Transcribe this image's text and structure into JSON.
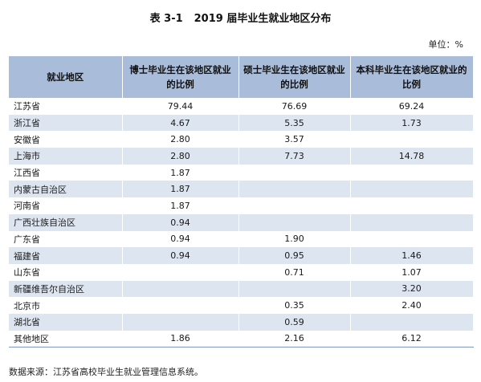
{
  "title": {
    "number": "表 3-1",
    "text": "2019 届毕业生就业地区分布"
  },
  "unit": "单位：%",
  "table": {
    "headers": [
      "就业地区",
      "博士毕业生在该地区就业的比例",
      "硕士毕业生在该地区就业的比例",
      "本科毕业生在该地区就业的比例"
    ],
    "rows": [
      [
        "江苏省",
        "79.44",
        "76.69",
        "69.24"
      ],
      [
        "浙江省",
        "4.67",
        "5.35",
        "1.73"
      ],
      [
        "安徽省",
        "2.80",
        "3.57",
        ""
      ],
      [
        "上海市",
        "2.80",
        "7.73",
        "14.78"
      ],
      [
        "江西省",
        "1.87",
        "",
        ""
      ],
      [
        "内蒙古自治区",
        "1.87",
        "",
        ""
      ],
      [
        "河南省",
        "1.87",
        "",
        ""
      ],
      [
        "广西壮族自治区",
        "0.94",
        "",
        ""
      ],
      [
        "广东省",
        "0.94",
        "1.90",
        ""
      ],
      [
        "福建省",
        "0.94",
        "0.95",
        "1.46"
      ],
      [
        "山东省",
        "",
        "0.71",
        "1.07"
      ],
      [
        "新疆维吾尔自治区",
        "",
        "",
        "3.20"
      ],
      [
        "北京市",
        "",
        "0.35",
        "2.40"
      ],
      [
        "湖北省",
        "",
        "0.59",
        ""
      ],
      [
        "其他地区",
        "1.86",
        "2.16",
        "6.12"
      ]
    ]
  },
  "source": "数据来源：江苏省高校毕业生就业管理信息系统。"
}
